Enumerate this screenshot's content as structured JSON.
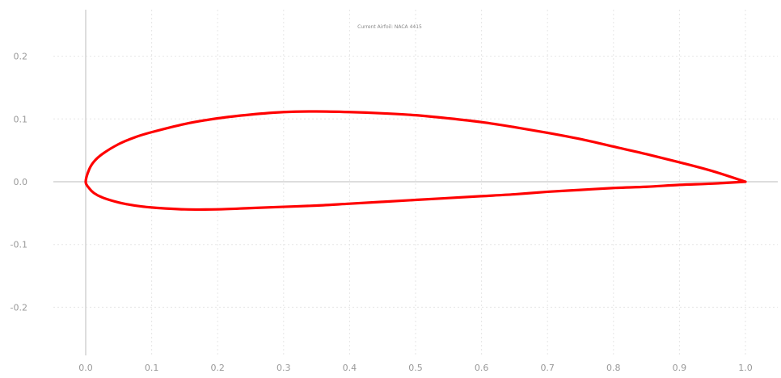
{
  "chart_data": {
    "type": "line",
    "title": "Current Airfoil: NACA 4415",
    "xlabel": "",
    "ylabel": "",
    "xlim": [
      0,
      1
    ],
    "ylim": [
      -0.25,
      0.25
    ],
    "x_ticks": [
      0.0,
      0.1,
      0.2,
      0.3,
      0.4,
      0.5,
      0.6,
      0.7,
      0.8,
      0.9,
      1.0
    ],
    "x_tick_labels": [
      "0.0",
      "0.1",
      "0.2",
      "0.3",
      "0.4",
      "0.5",
      "0.6",
      "0.7",
      "0.8",
      "0.9",
      "1.0"
    ],
    "y_ticks": [
      0.2,
      0.1,
      0.0,
      -0.1,
      -0.2
    ],
    "y_tick_labels": [
      "0.2",
      "0.1",
      "0.0",
      "-0.1",
      "-0.2"
    ],
    "grid": true,
    "series": [
      {
        "color": "#ff0000",
        "x": [
          1.0,
          0.95,
          0.9,
          0.85,
          0.8,
          0.75,
          0.7,
          0.65,
          0.6,
          0.55,
          0.5,
          0.45,
          0.4,
          0.35,
          0.3,
          0.25,
          0.2,
          0.15,
          0.1,
          0.075,
          0.05,
          0.025,
          0.0125,
          0.005,
          0.0,
          0.005,
          0.0125,
          0.025,
          0.05,
          0.075,
          0.1,
          0.15,
          0.2,
          0.25,
          0.3,
          0.35,
          0.4,
          0.45,
          0.5,
          0.55,
          0.6,
          0.65,
          0.7,
          0.75,
          0.8,
          0.85,
          0.9,
          0.95,
          1.0
        ],
        "y": [
          0.0,
          0.017,
          0.031,
          0.044,
          0.056,
          0.068,
          0.078,
          0.087,
          0.095,
          0.101,
          0.106,
          0.109,
          0.111,
          0.112,
          0.111,
          0.107,
          0.101,
          0.092,
          0.079,
          0.071,
          0.06,
          0.044,
          0.032,
          0.019,
          0.0,
          -0.01,
          -0.018,
          -0.025,
          -0.033,
          -0.038,
          -0.041,
          -0.044,
          -0.044,
          -0.042,
          -0.04,
          -0.038,
          -0.035,
          -0.032,
          -0.029,
          -0.026,
          -0.023,
          -0.02,
          -0.016,
          -0.013,
          -0.01,
          -0.008,
          -0.005,
          -0.003,
          0.0
        ]
      }
    ]
  }
}
